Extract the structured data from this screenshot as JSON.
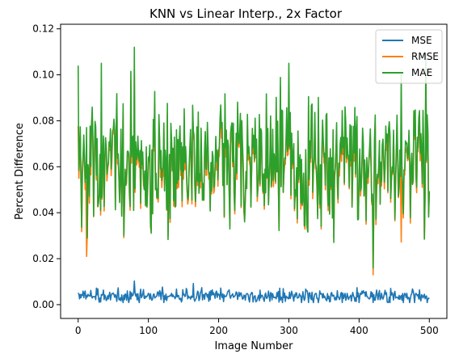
{
  "chart_data": {
    "type": "line",
    "title": "KNN vs Linear Interp., 2x Factor",
    "xlabel": "Image Number",
    "ylabel": "Percent Difference",
    "xlim": [
      -25,
      525
    ],
    "ylim": [
      -0.006,
      0.122
    ],
    "xticks": [
      "0",
      "100",
      "200",
      "300",
      "400",
      "500"
    ],
    "xtick_values": [
      0,
      100,
      200,
      300,
      400,
      500
    ],
    "yticks": [
      "0.00",
      "0.02",
      "0.04",
      "0.06",
      "0.08",
      "0.10",
      "0.12"
    ],
    "ytick_values": [
      0,
      0.02,
      0.04,
      0.06,
      0.08,
      0.1,
      0.12
    ],
    "grid": false,
    "legend_position": "top-right",
    "n_points": 501,
    "series": [
      {
        "name": "MSE",
        "color": "#1f77b4",
        "mean": 0.0038,
        "min": 0.0009,
        "max": 0.0105,
        "spread": 0.0014
      },
      {
        "name": "RMSE",
        "color": "#ff7f0e",
        "mean": 0.059,
        "min": 0.013,
        "max": 0.106,
        "spread": 0.014
      },
      {
        "name": "MAE",
        "color": "#2ca02c",
        "mean": 0.061,
        "min": 0.016,
        "max": 0.112,
        "spread": 0.015
      }
    ],
    "highlights": {
      "MSE": {
        "80": 0.0103,
        "164": 0.0092,
        "420": 0.0009
      },
      "RMSE": {
        "12": 0.021,
        "420": 0.013,
        "80": 0.1,
        "495": 0.103
      },
      "MAE": {
        "0": 0.104,
        "33": 0.105,
        "80": 0.112,
        "300": 0.105,
        "420": 0.016,
        "460": 0.1,
        "495": 0.109
      }
    }
  }
}
